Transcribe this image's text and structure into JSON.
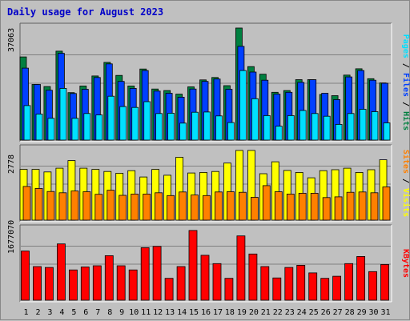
{
  "title": "Daily usage for August 2023",
  "days": [
    "1",
    "2",
    "3",
    "4",
    "5",
    "6",
    "7",
    "8",
    "9",
    "10",
    "11",
    "12",
    "13",
    "14",
    "15",
    "16",
    "17",
    "18",
    "19",
    "20",
    "21",
    "22",
    "23",
    "24",
    "25",
    "26",
    "27",
    "28",
    "29",
    "30",
    "31"
  ],
  "weekend_days": [
    "5",
    "6",
    "12",
    "13",
    "19",
    "20",
    "26",
    "27"
  ],
  "colors": {
    "hits": "#008040",
    "files": "#0040ff",
    "pages": "#00e0ff",
    "visits": "#ffff00",
    "sites": "#ff8000",
    "kbytes": "#ff0000",
    "weekend": "#00806a",
    "title": "#0000c8"
  },
  "side_labels": {
    "top": [
      "Pages",
      "Files",
      "Hits"
    ],
    "middle": [
      "Sites",
      "Visits"
    ],
    "bottom": [
      "KBytes"
    ]
  },
  "chart_data": [
    {
      "type": "bar",
      "panel": "hits-files-pages",
      "ymax_label": "37063",
      "ylim": [
        0,
        37063
      ],
      "categories": [
        "1",
        "2",
        "3",
        "4",
        "5",
        "6",
        "7",
        "8",
        "9",
        "10",
        "11",
        "12",
        "13",
        "14",
        "15",
        "16",
        "17",
        "18",
        "19",
        "20",
        "21",
        "22",
        "23",
        "24",
        "25",
        "26",
        "27",
        "28",
        "29",
        "30",
        "31"
      ],
      "series": [
        {
          "name": "Hits",
          "values": [
            27500,
            18400,
            17700,
            29400,
            15700,
            17900,
            21200,
            25700,
            21400,
            17900,
            23500,
            16900,
            16400,
            15200,
            17600,
            19900,
            20700,
            18000,
            38500,
            24300,
            21800,
            15800,
            16400,
            20000,
            20000,
            15100,
            14700,
            21500,
            23600,
            20300,
            18900
          ]
        },
        {
          "name": "Files",
          "values": [
            23800,
            18400,
            16500,
            28700,
            15400,
            16800,
            20700,
            25200,
            19400,
            17100,
            23000,
            16200,
            15500,
            14200,
            16900,
            19400,
            20200,
            16800,
            31000,
            22500,
            19800,
            15200,
            15800,
            19100,
            20000,
            15500,
            13400,
            20900,
            23000,
            19800,
            18800
          ]
        },
        {
          "name": "Pages",
          "values": [
            11400,
            8600,
            7200,
            17100,
            7200,
            8800,
            8300,
            14500,
            11100,
            10800,
            12700,
            8800,
            8900,
            5600,
            9200,
            9300,
            8000,
            5800,
            23000,
            13700,
            8100,
            4600,
            8100,
            9800,
            8800,
            7900,
            5200,
            8800,
            10200,
            9400,
            5700
          ]
        }
      ]
    },
    {
      "type": "bar",
      "panel": "visits-sites",
      "ymax_label": "2778",
      "ylim": [
        0,
        2778
      ],
      "categories": [
        "1",
        "2",
        "3",
        "4",
        "5",
        "6",
        "7",
        "8",
        "9",
        "10",
        "11",
        "12",
        "13",
        "14",
        "15",
        "16",
        "17",
        "18",
        "19",
        "20",
        "21",
        "22",
        "23",
        "24",
        "25",
        "26",
        "27",
        "28",
        "29",
        "30",
        "31"
      ],
      "series": [
        {
          "name": "Visits",
          "values": [
            2000,
            2000,
            1900,
            2050,
            2350,
            2050,
            2000,
            1920,
            1850,
            1950,
            1700,
            2000,
            1770,
            2480,
            1860,
            1880,
            1920,
            2250,
            2750,
            2750,
            1830,
            2300,
            1960,
            1880,
            1670,
            1950,
            1990,
            2050,
            1880,
            1990,
            2380
          ]
        },
        {
          "name": "Sites",
          "values": [
            1330,
            1250,
            1130,
            1080,
            1150,
            1120,
            1020,
            1180,
            980,
            1030,
            1030,
            1080,
            970,
            1110,
            990,
            970,
            1110,
            1120,
            1100,
            900,
            1360,
            1120,
            1030,
            1060,
            1060,
            890,
            920,
            1100,
            1110,
            1080,
            1310
          ]
        }
      ]
    },
    {
      "type": "bar",
      "panel": "kbytes",
      "ymax_label": "1677070",
      "ylim": [
        0,
        1677070
      ],
      "categories": [
        "1",
        "2",
        "3",
        "4",
        "5",
        "6",
        "7",
        "8",
        "9",
        "10",
        "11",
        "12",
        "13",
        "14",
        "15",
        "16",
        "17",
        "18",
        "19",
        "20",
        "21",
        "22",
        "23",
        "24",
        "25",
        "26",
        "27",
        "28",
        "29",
        "30",
        "31"
      ],
      "series": [
        {
          "name": "KBytes",
          "values": [
            1170000,
            800000,
            780000,
            1340000,
            720000,
            790000,
            820000,
            1060000,
            820000,
            720000,
            1250000,
            1280000,
            520000,
            800000,
            1660000,
            1070000,
            870000,
            520000,
            1530000,
            1100000,
            800000,
            530000,
            780000,
            830000,
            650000,
            520000,
            570000,
            870000,
            1040000,
            680000,
            850000
          ]
        }
      ]
    }
  ]
}
